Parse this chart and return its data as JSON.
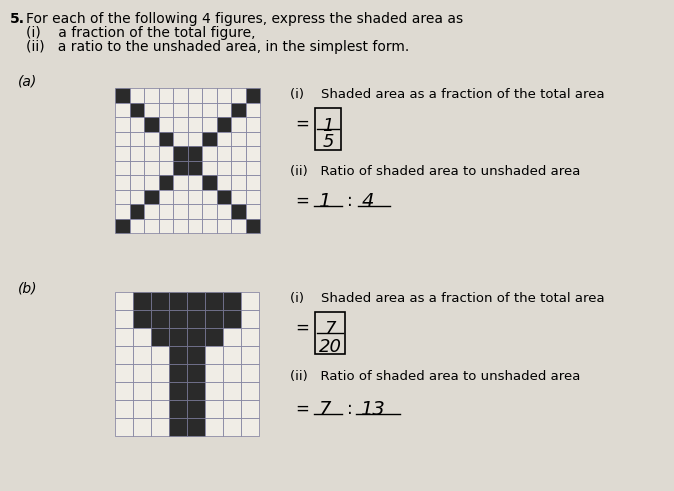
{
  "bg_color": "#dedad2",
  "title_number": "5.",
  "title_text": "For each of the following 4 figures, express the shaded area as",
  "sub_i": "(i)    a fraction of the total figure,",
  "sub_ii": "(ii)   a ratio to the unshaded area, in the simplest form.",
  "part_a_label": "(a)",
  "part_b_label": "(b)",
  "part_a_i_label": "(i)    Shaded area as a fraction of the total area",
  "part_a_ii_label": "(ii)   Ratio of shaded area to unshaded area",
  "part_b_i_label": "(i)    Shaded area as a fraction of the total area",
  "part_b_ii_label": "(ii)   Ratio of shaded area to unshaded area",
  "a_fraction_num": "1",
  "a_fraction_den": "5",
  "a_ratio_1": "1",
  "a_ratio_2": "4",
  "b_fraction_num": "7",
  "b_fraction_den": "20",
  "b_ratio_1": "7",
  "b_ratio_2": "13",
  "dark_color": "#2a2a2a",
  "light_color": "#f0ede6",
  "grid_color": "#7a7a9a"
}
